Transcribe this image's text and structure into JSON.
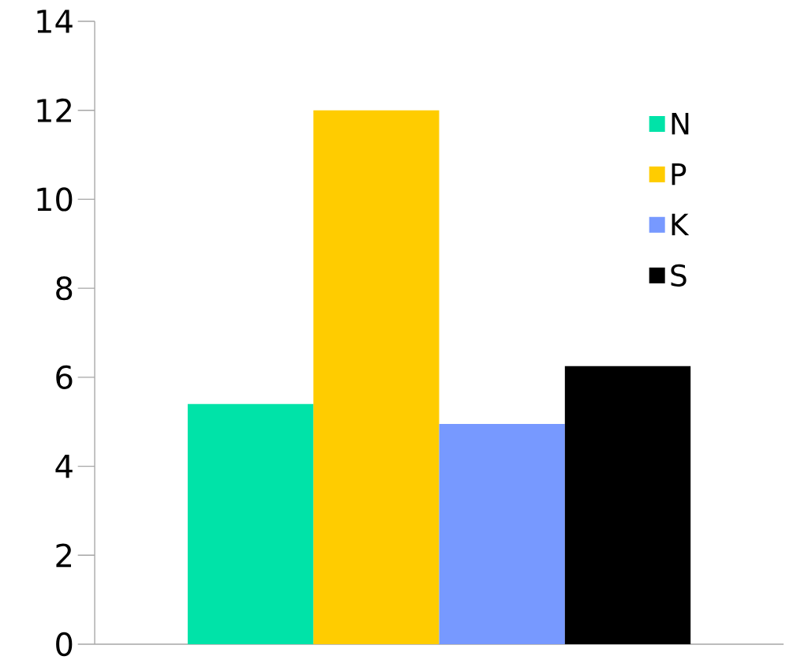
{
  "chart_data": {
    "type": "bar",
    "categories": [
      null
    ],
    "series": [
      {
        "name": "N",
        "color": "#00e3a8",
        "values": [
          5.4
        ]
      },
      {
        "name": "P",
        "color": "#ffcc00",
        "values": [
          12
        ]
      },
      {
        "name": "K",
        "color": "#7799ff",
        "values": [
          4.95
        ]
      },
      {
        "name": "S",
        "color": "#000000",
        "values": [
          6.25
        ]
      }
    ],
    "ylim": [
      0,
      14
    ],
    "yticks": [
      0,
      2,
      4,
      6,
      8,
      10,
      12,
      14
    ],
    "grid": false,
    "legend": "top right"
  }
}
